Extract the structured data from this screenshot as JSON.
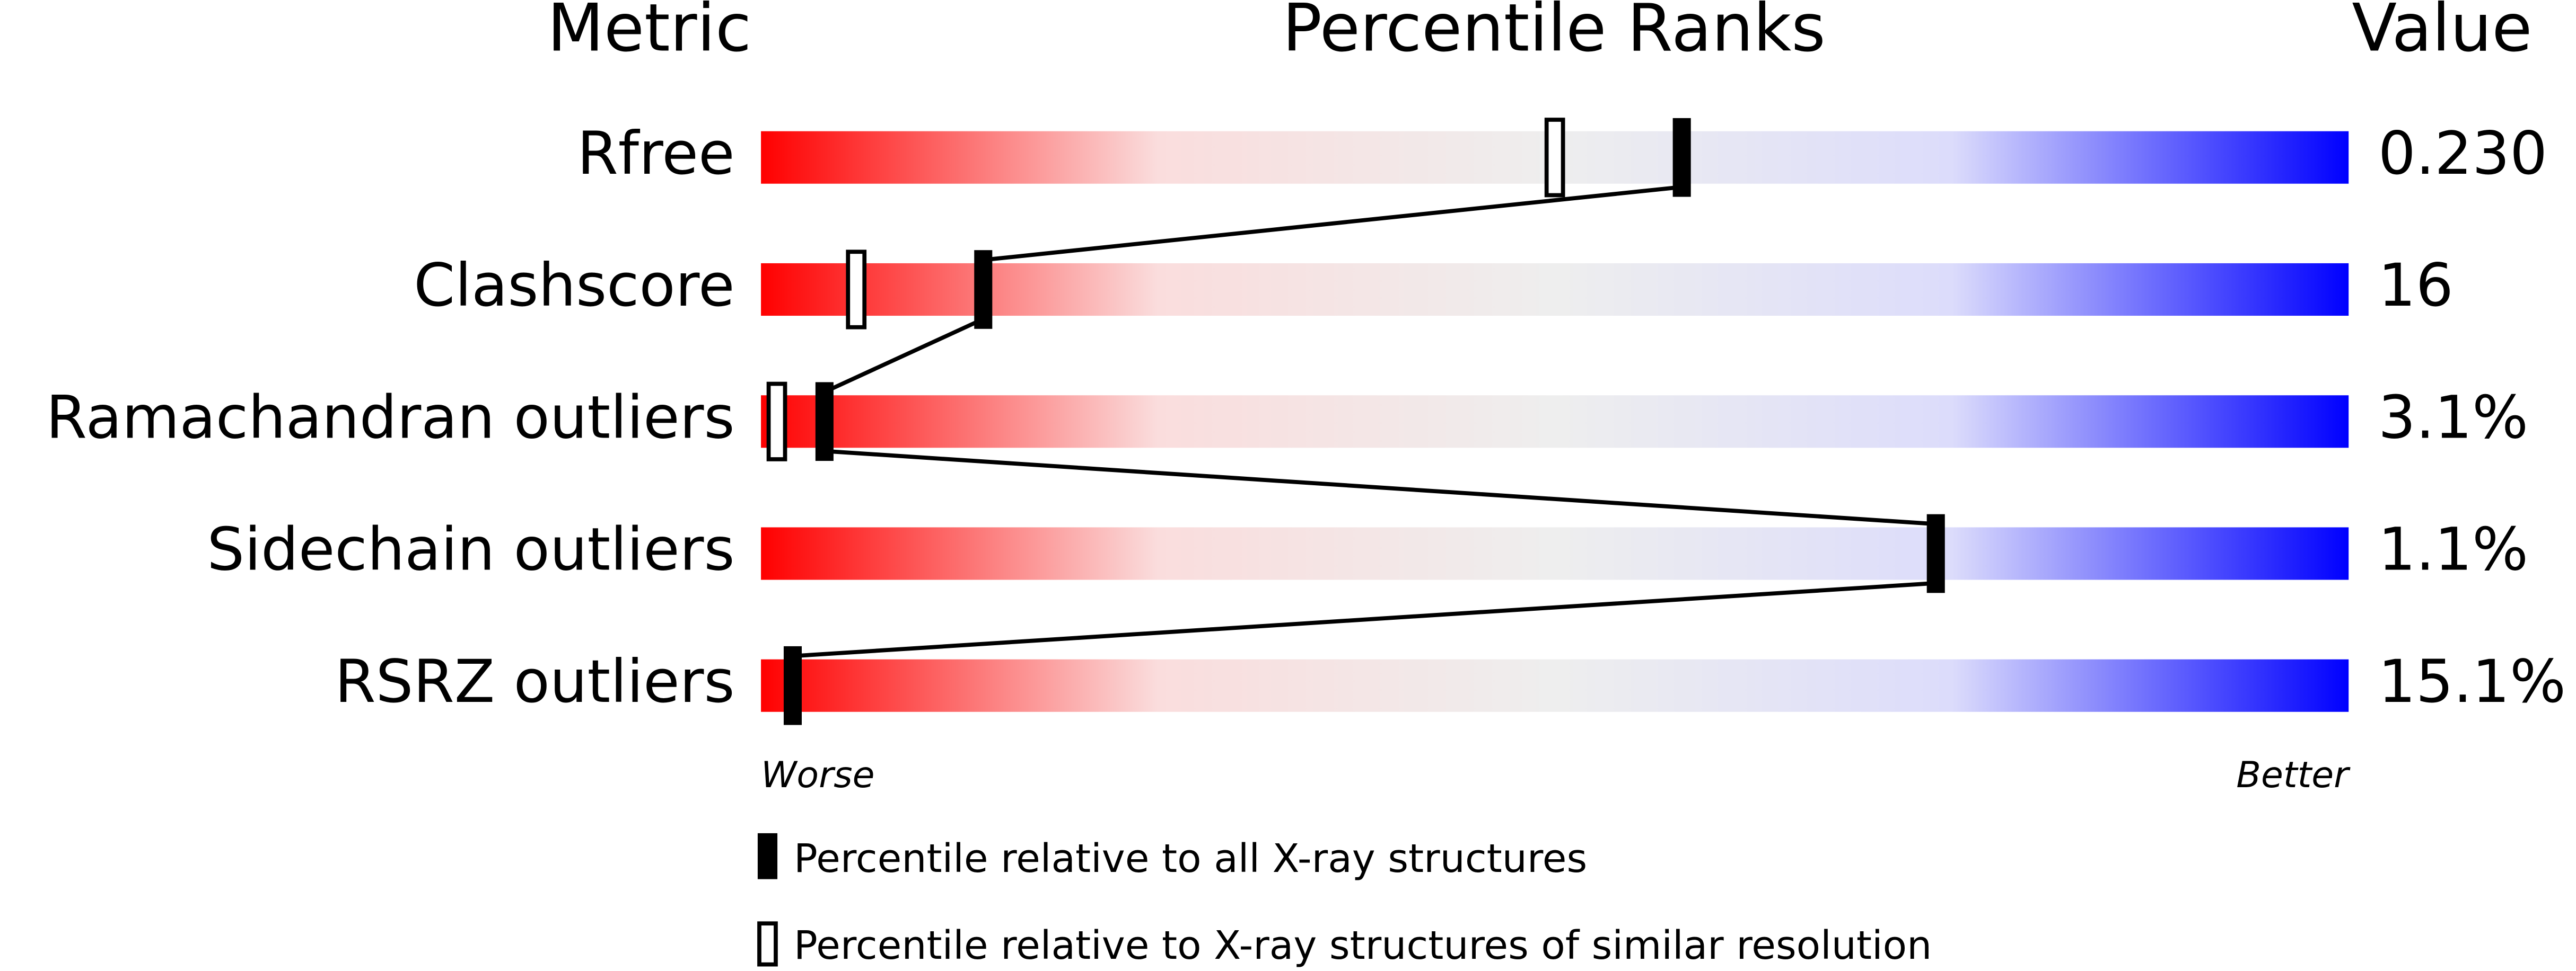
{
  "chart_data": {
    "type": "percentile",
    "title": "Percentile Ranks",
    "metric_header": "Metric",
    "value_header": "Value",
    "categories": [
      "Rfree",
      "Clashscore",
      "Ramachandran outliers",
      "Sidechain outliers",
      "RSRZ outliers"
    ],
    "metric_values": [
      "0.230",
      "16",
      "3.1%",
      "1.1%",
      "15.1%"
    ],
    "series": [
      {
        "name": "Percentile relative to all X-ray structures",
        "style": "filled",
        "color": "#000000",
        "values": [
          58,
          14,
          4,
          74,
          2
        ]
      },
      {
        "name": "Percentile relative to X-ray structures of similar resolution",
        "style": "open",
        "color": "#000000",
        "values": [
          50,
          6,
          1,
          null,
          null
        ]
      }
    ],
    "xlim": [
      0,
      100
    ],
    "low_label": "Worse",
    "high_label": "Better",
    "gradient": [
      "#ff0000",
      "#fadddd",
      "#eeeeee",
      "#dcdcfb",
      "#0000ff"
    ]
  }
}
